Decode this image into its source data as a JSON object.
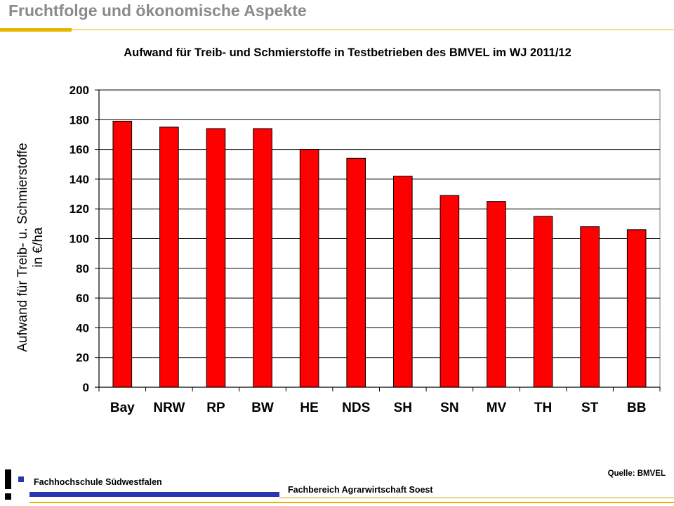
{
  "slide": {
    "title": "Fruchtfolge und ökonomische Aspekte",
    "source": "Quelle: BMVEL",
    "school": "Fachhochschule Südwestfalen",
    "department": "Fachbereich Agrarwirtschaft Soest",
    "logo_glyph": "!"
  },
  "colors": {
    "bar": "#ff0000",
    "title_gray": "#8a8a8a",
    "accent_yellow": "#e8b400",
    "accent_blue": "#2b35b0"
  },
  "chart_data": {
    "type": "bar",
    "title": "Aufwand für Treib- und Schmierstoffe in Testbetrieben des BMVEL im WJ 2011/12",
    "ylabel_line1": "Aufwand für Treib- u. Schmierstoffe",
    "ylabel_line2": "in €/ha",
    "xlabel": "",
    "categories": [
      "Bay",
      "NRW",
      "RP",
      "BW",
      "HE",
      "NDS",
      "SH",
      "SN",
      "MV",
      "TH",
      "ST",
      "BB"
    ],
    "values": [
      179,
      175,
      174,
      174,
      160,
      154,
      142,
      129,
      125,
      115,
      108,
      106
    ],
    "ylim": [
      0,
      200
    ],
    "yticks": [
      0,
      20,
      40,
      60,
      80,
      100,
      120,
      140,
      160,
      180,
      200
    ],
    "grid": true,
    "legend": "none"
  }
}
